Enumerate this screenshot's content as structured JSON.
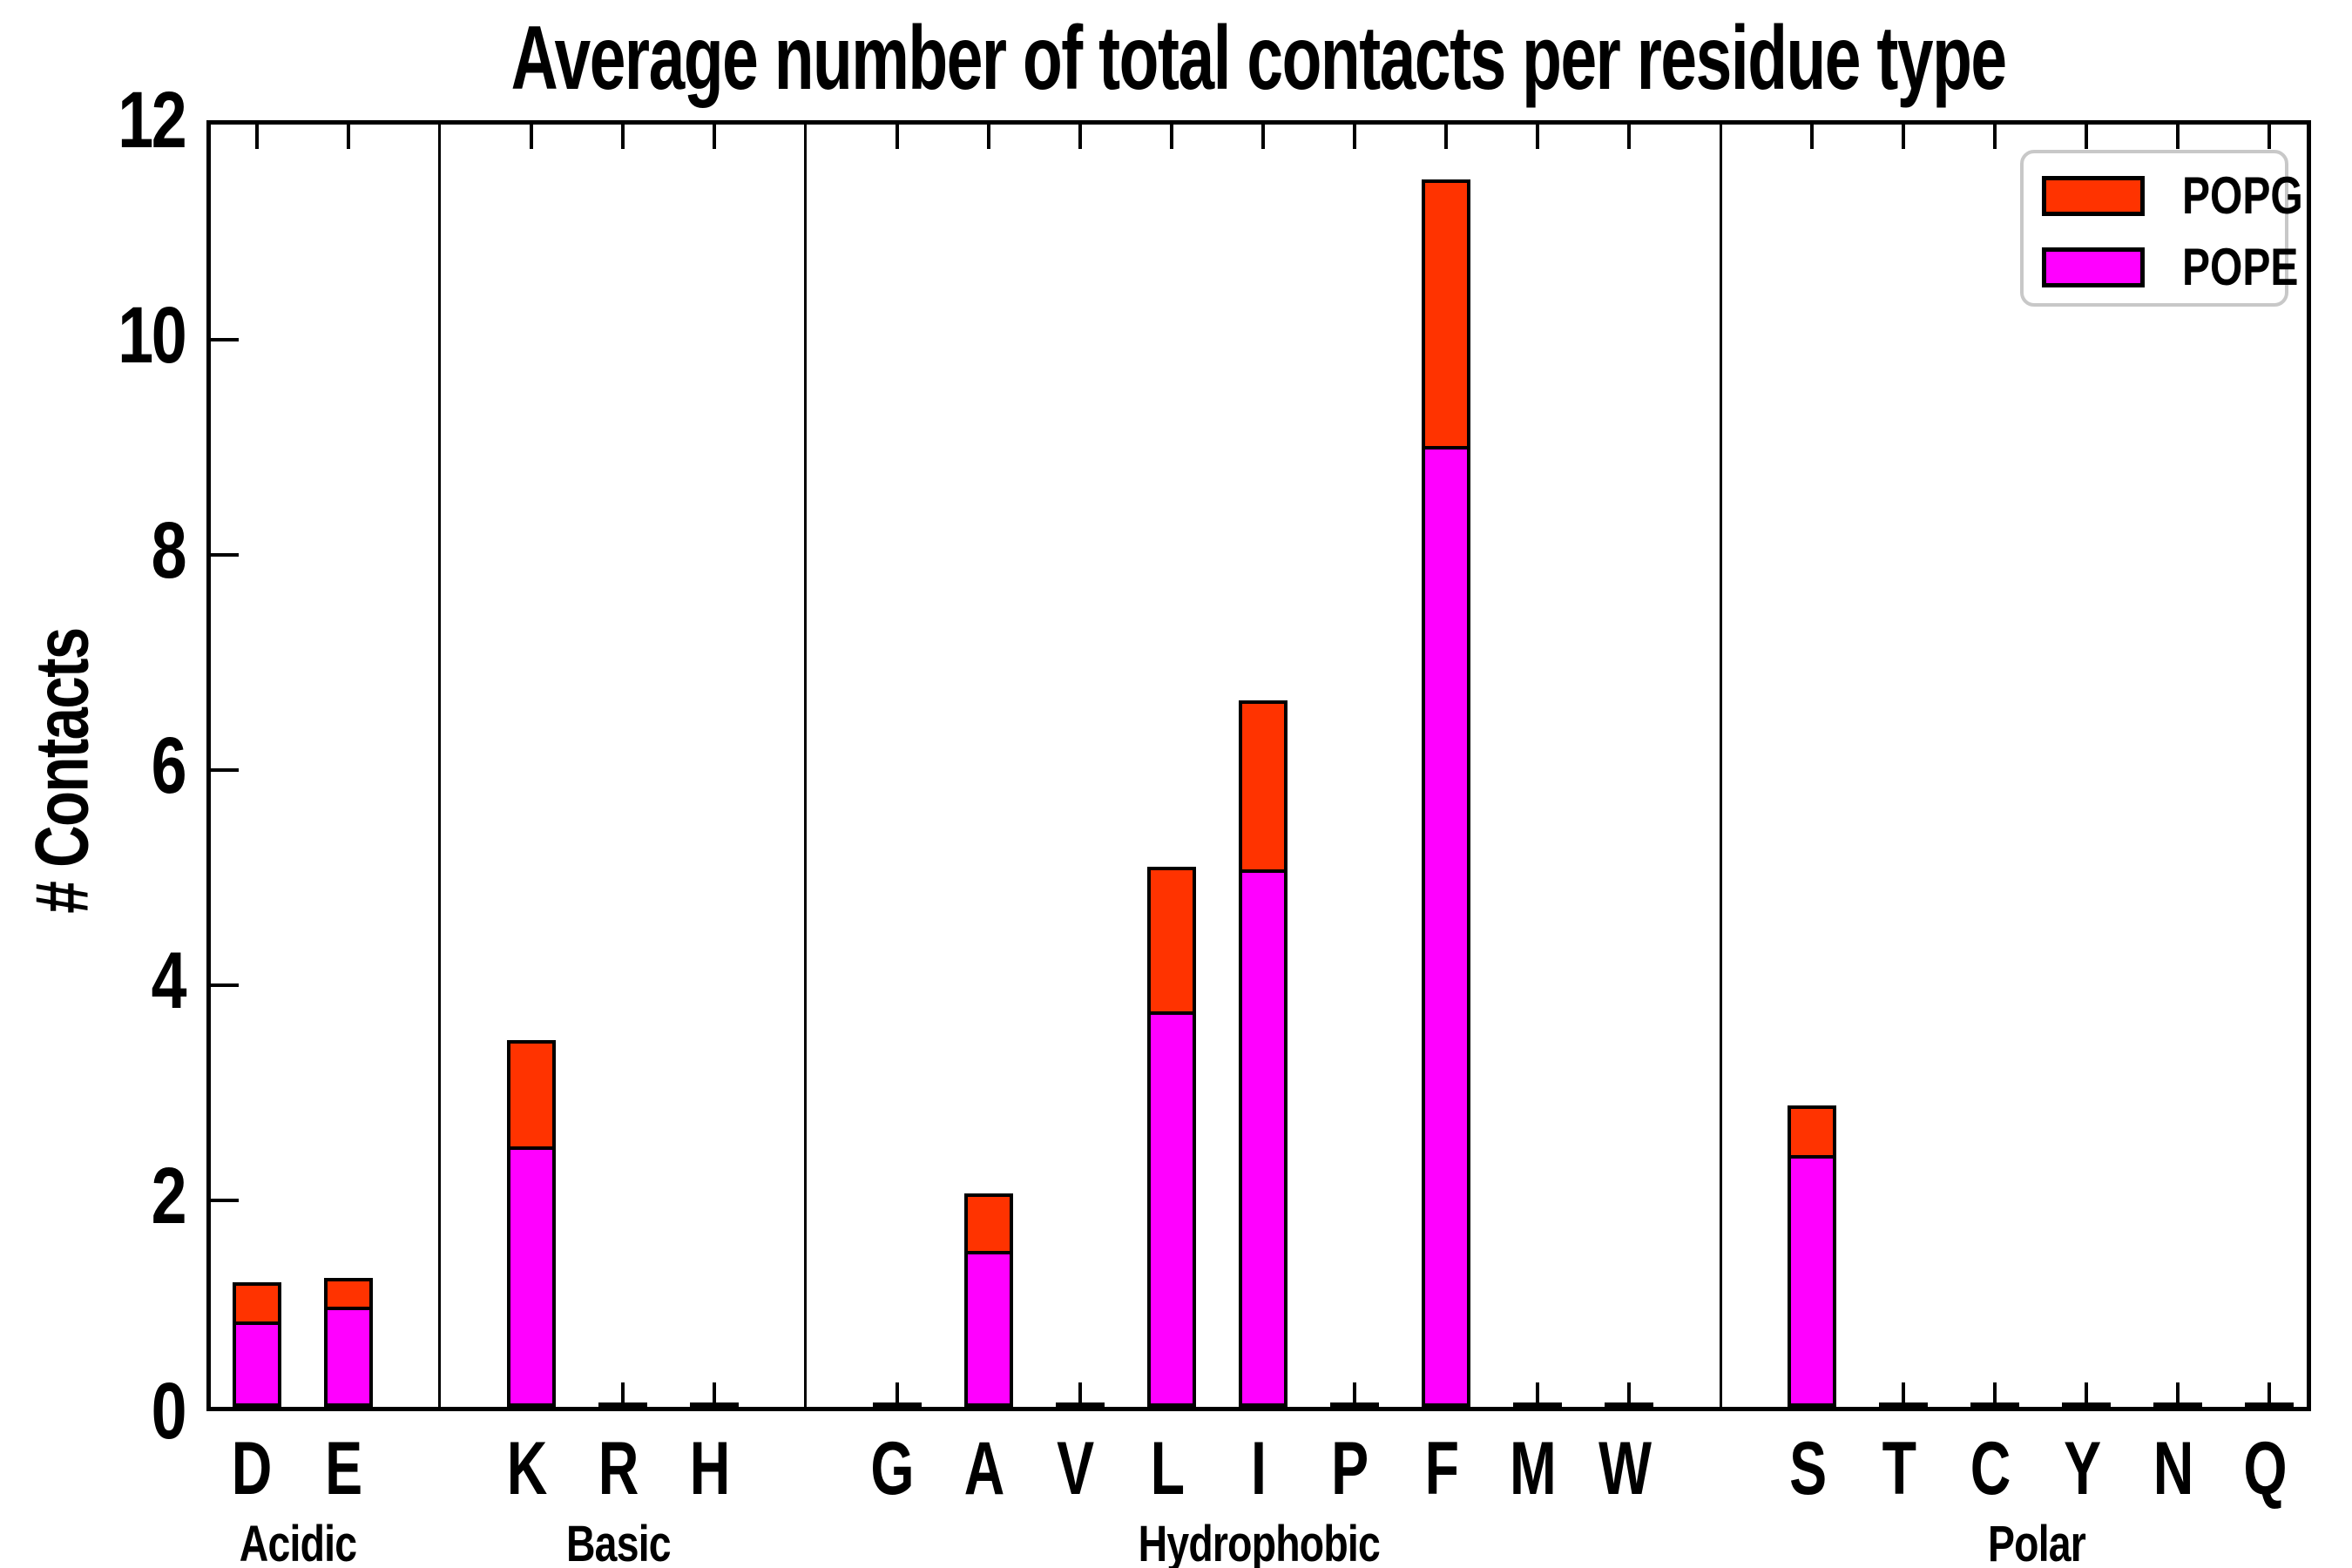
{
  "title": "Average number of total contacts per residue type",
  "ylabel": "# Contacts",
  "legend": [
    {
      "label": "POPG",
      "color": "#ff3300"
    },
    {
      "label": "POPE",
      "color": "#ff00ff"
    }
  ],
  "chart_data": {
    "type": "bar",
    "stacked": true,
    "title": "Average number of total contacts per residue type",
    "xlabel": "",
    "ylabel": "# Contacts",
    "ylim": [
      0,
      12
    ],
    "yticks": [
      0,
      2,
      4,
      6,
      8,
      10,
      12
    ],
    "grid": false,
    "legend_position": "upper right",
    "categories": [
      "D",
      "E",
      "K",
      "R",
      "H",
      "G",
      "A",
      "V",
      "L",
      "I",
      "P",
      "F",
      "M",
      "W",
      "S",
      "T",
      "C",
      "Y",
      "N",
      "Q"
    ],
    "groups": [
      {
        "label": "Acidic",
        "categories": [
          "D",
          "E"
        ]
      },
      {
        "label": "Basic",
        "categories": [
          "K",
          "R",
          "H"
        ]
      },
      {
        "label": "Hydrophobic",
        "categories": [
          "G",
          "A",
          "V",
          "L",
          "I",
          "P",
          "F",
          "M",
          "W"
        ]
      },
      {
        "label": "Polar",
        "categories": [
          "S",
          "T",
          "C",
          "Y",
          "N",
          "Q"
        ]
      }
    ],
    "series": [
      {
        "name": "POPE",
        "color": "#ff00ff",
        "values": [
          0.79,
          0.93,
          2.42,
          0.01,
          0.01,
          0.01,
          1.45,
          0.01,
          3.68,
          5.0,
          0.01,
          8.93,
          0.01,
          0.01,
          2.34,
          0.01,
          0.01,
          0.01,
          0.01,
          0.01
        ]
      },
      {
        "name": "POPG",
        "color": "#ff3300",
        "values": [
          0.37,
          0.27,
          0.99,
          0.01,
          0.01,
          0.01,
          0.53,
          0.01,
          1.34,
          1.57,
          0.01,
          2.48,
          0.01,
          0.01,
          0.46,
          0.01,
          0.01,
          0.01,
          0.01,
          0.01
        ]
      }
    ],
    "totals": [
      1.16,
      1.2,
      3.41,
      0.02,
      0.02,
      0.02,
      1.98,
      0.02,
      5.02,
      6.57,
      0.02,
      11.41,
      0.02,
      0.02,
      2.8,
      0.02,
      0.02,
      0.02,
      0.02,
      0.02
    ]
  }
}
